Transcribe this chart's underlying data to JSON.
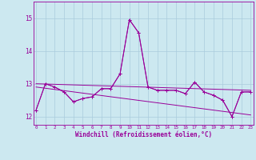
{
  "x": [
    0,
    1,
    2,
    3,
    4,
    5,
    6,
    7,
    8,
    9,
    10,
    11,
    12,
    13,
    14,
    15,
    16,
    17,
    18,
    19,
    20,
    21,
    22,
    23
  ],
  "line1": [
    12.2,
    13.0,
    12.9,
    12.75,
    12.45,
    12.55,
    12.6,
    12.85,
    12.85,
    13.3,
    14.95,
    14.55,
    12.9,
    12.8,
    12.8,
    12.8,
    12.7,
    13.05,
    12.75,
    12.65,
    12.5,
    12.0,
    12.75,
    12.75
  ],
  "line2": [
    12.2,
    13.0,
    12.9,
    12.75,
    12.45,
    12.55,
    12.6,
    12.85,
    12.85,
    13.3,
    14.95,
    14.55,
    12.9,
    12.8,
    12.8,
    12.8,
    12.7,
    13.05,
    12.75,
    12.65,
    12.5,
    12.0,
    12.75,
    12.75
  ],
  "line3_x": [
    0,
    23
  ],
  "line3_y": [
    13.0,
    12.8
  ],
  "line4_x": [
    0,
    23
  ],
  "line4_y": [
    12.9,
    12.05
  ],
  "color": "#990099",
  "bg_color": "#cce8f0",
  "grid_color": "#aaccdd",
  "ylim_min": 11.75,
  "ylim_max": 15.5,
  "xlabel": "Windchill (Refroidissement éolien,°C)",
  "yticks": [
    12,
    13,
    14,
    15
  ],
  "xticks": [
    0,
    1,
    2,
    3,
    4,
    5,
    6,
    7,
    8,
    9,
    10,
    11,
    12,
    13,
    14,
    15,
    16,
    17,
    18,
    19,
    20,
    21,
    22,
    23
  ]
}
